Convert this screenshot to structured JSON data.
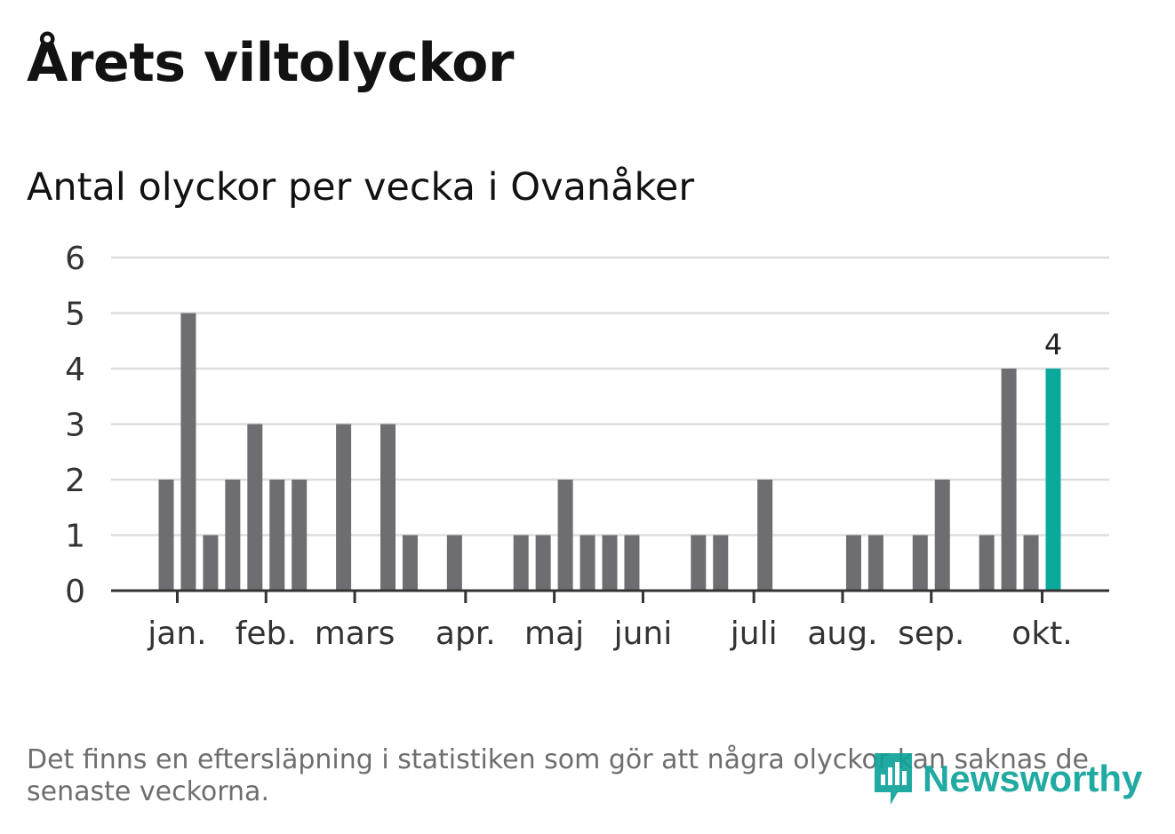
{
  "title": "Årets viltolyckor",
  "subtitle": "Antal olyckor per vecka i Ovanåker",
  "footnote": "Det finns en eftersläpning i statistiken som gör att några olyckor kan saknas de senaste veckorna.",
  "logo": {
    "text": "Newsworthy",
    "icon": "newsworthy-logo-icon"
  },
  "colors": {
    "bar": "#6e6d72",
    "highlight": "#0aa99c",
    "grid": "#dddddd",
    "axis": "#333333",
    "text": "#333333",
    "brand": "#0fa39a"
  },
  "chart_data": {
    "type": "bar",
    "xlabel": "",
    "ylabel": "",
    "ylim": [
      0,
      6
    ],
    "yticks": [
      0,
      1,
      2,
      3,
      4,
      5,
      6
    ],
    "weeks": [
      1,
      2,
      3,
      4,
      5,
      6,
      7,
      8,
      9,
      10,
      11,
      12,
      13,
      14,
      15,
      16,
      17,
      18,
      19,
      20,
      21,
      22,
      23,
      24,
      25,
      26,
      27,
      28,
      29,
      30,
      31,
      32,
      33,
      34,
      35,
      36,
      37,
      38,
      39,
      40,
      41
    ],
    "values": [
      0,
      0,
      2,
      5,
      1,
      2,
      3,
      2,
      2,
      0,
      3,
      0,
      3,
      1,
      0,
      1,
      0,
      0,
      1,
      1,
      2,
      1,
      1,
      1,
      0,
      0,
      1,
      1,
      0,
      2,
      0,
      0,
      0,
      1,
      1,
      0,
      1,
      2,
      0,
      1,
      4
    ],
    "extra_weeks": [
      42,
      43
    ],
    "extra_values": [
      1,
      4
    ],
    "highlight_week": 43,
    "highlight_label": "4",
    "month_labels": [
      {
        "label": "jan.",
        "week": 3.5
      },
      {
        "label": "feb.",
        "week": 7.5
      },
      {
        "label": "mars",
        "week": 11.5
      },
      {
        "label": "apr.",
        "week": 16.5
      },
      {
        "label": "maj",
        "week": 20.5
      },
      {
        "label": "juni",
        "week": 24.5
      },
      {
        "label": "juli",
        "week": 29.5
      },
      {
        "label": "aug.",
        "week": 33.5
      },
      {
        "label": "sep.",
        "week": 37.5
      },
      {
        "label": "okt.",
        "week": 42.5
      }
    ]
  }
}
